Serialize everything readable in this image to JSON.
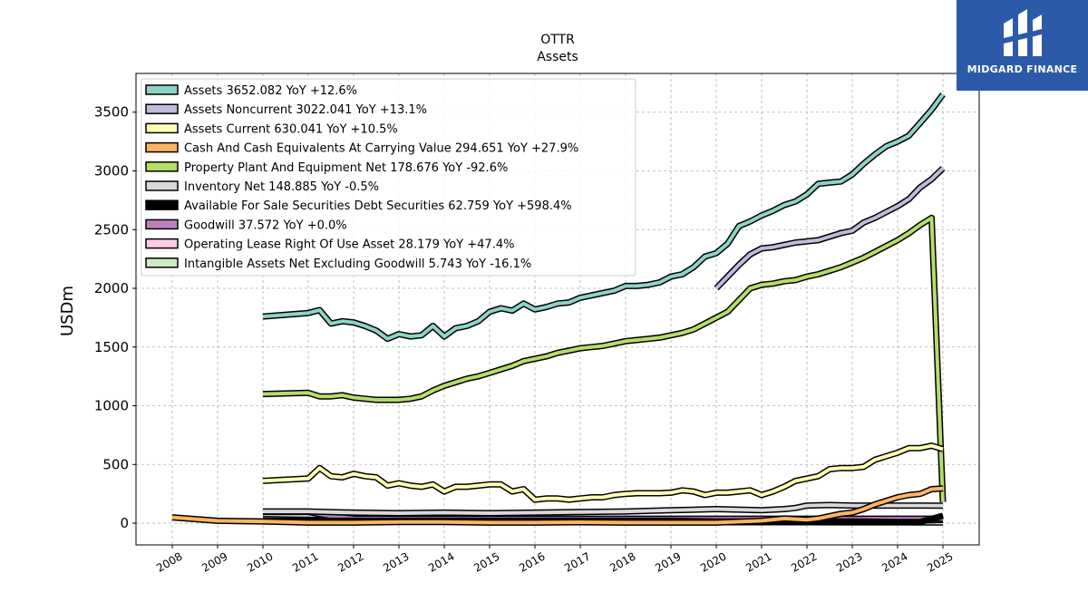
{
  "brand": {
    "name": "MIDGARD FINANCE"
  },
  "chart_data": {
    "type": "line",
    "title": "OTTR",
    "subtitle": "Assets",
    "xlabel": "",
    "ylabel": "USDm",
    "xlim": [
      2007.2,
      2025.8
    ],
    "ylim": [
      -185,
      3830
    ],
    "x_ticks": [
      "2008",
      "2009",
      "2010",
      "2011",
      "2012",
      "2013",
      "2014",
      "2015",
      "2016",
      "2017",
      "2018",
      "2019",
      "2020",
      "2021",
      "2022",
      "2023",
      "2024",
      "2025"
    ],
    "y_ticks": [
      0,
      500,
      1000,
      1500,
      2000,
      2500,
      3000,
      3500
    ],
    "grid": true,
    "legend_position": "upper-left",
    "series": [
      {
        "name": "Assets",
        "legend": "Assets  3652.082 YoY +12.6%",
        "color": "#8dd3c7",
        "x": [
          2010.0,
          2011.0,
          2011.25,
          2011.5,
          2011.75,
          2012.0,
          2012.25,
          2012.5,
          2012.75,
          2013.0,
          2013.25,
          2013.5,
          2013.75,
          2014.0,
          2014.25,
          2014.5,
          2014.75,
          2015.0,
          2015.25,
          2015.5,
          2015.75,
          2016.0,
          2016.25,
          2016.5,
          2016.75,
          2017.0,
          2017.25,
          2017.5,
          2017.75,
          2018.0,
          2018.25,
          2018.5,
          2018.75,
          2019.0,
          2019.25,
          2019.5,
          2019.75,
          2020.0,
          2020.25,
          2020.5,
          2020.75,
          2021.0,
          2021.25,
          2021.5,
          2021.75,
          2022.0,
          2022.25,
          2022.5,
          2022.75,
          2023.0,
          2023.25,
          2023.5,
          2023.75,
          2024.0,
          2024.25,
          2024.5,
          2024.75,
          2025.0
        ],
        "y": [
          1760,
          1790,
          1815,
          1700,
          1720,
          1710,
          1680,
          1640,
          1570,
          1610,
          1590,
          1600,
          1680,
          1590,
          1660,
          1680,
          1720,
          1800,
          1830,
          1810,
          1870,
          1820,
          1840,
          1870,
          1880,
          1920,
          1940,
          1960,
          1980,
          2020,
          2020,
          2030,
          2050,
          2100,
          2120,
          2180,
          2270,
          2300,
          2380,
          2530,
          2570,
          2620,
          2660,
          2710,
          2740,
          2800,
          2890,
          2900,
          2910,
          2970,
          3060,
          3140,
          3210,
          3250,
          3300,
          3410,
          3520,
          3652
        ]
      },
      {
        "name": "Assets Noncurrent",
        "legend": "Assets Noncurrent  3022.041 YoY +13.1%",
        "color": "#bebada",
        "x": [
          2020.0,
          2020.25,
          2020.5,
          2020.75,
          2021.0,
          2021.25,
          2021.5,
          2021.75,
          2022.0,
          2022.25,
          2022.5,
          2022.75,
          2023.0,
          2023.25,
          2023.5,
          2023.75,
          2024.0,
          2024.25,
          2024.5,
          2024.75,
          2025.0
        ],
        "y": [
          2000,
          2100,
          2200,
          2290,
          2340,
          2350,
          2370,
          2390,
          2400,
          2410,
          2440,
          2470,
          2490,
          2560,
          2600,
          2650,
          2700,
          2760,
          2860,
          2930,
          3022
        ]
      },
      {
        "name": "Assets Current",
        "legend": "Assets Current  630.041 YoY +10.5%",
        "color": "#ffffb3",
        "x": [
          2010.0,
          2011.0,
          2011.25,
          2011.5,
          2011.75,
          2012.0,
          2012.25,
          2012.5,
          2012.75,
          2013.0,
          2013.25,
          2013.5,
          2013.75,
          2014.0,
          2014.25,
          2014.5,
          2014.75,
          2015.0,
          2015.25,
          2015.5,
          2015.75,
          2016.0,
          2016.25,
          2016.5,
          2016.75,
          2017.0,
          2017.25,
          2017.5,
          2017.75,
          2018.0,
          2018.25,
          2018.5,
          2018.75,
          2019.0,
          2019.25,
          2019.5,
          2019.75,
          2020.0,
          2020.25,
          2020.5,
          2020.75,
          2021.0,
          2021.25,
          2021.5,
          2021.75,
          2022.0,
          2022.25,
          2022.5,
          2022.75,
          2023.0,
          2023.25,
          2023.5,
          2023.75,
          2024.0,
          2024.25,
          2024.5,
          2024.75,
          2025.0
        ],
        "y": [
          360,
          380,
          470,
          400,
          390,
          420,
          400,
          390,
          320,
          340,
          320,
          310,
          330,
          270,
          310,
          310,
          320,
          330,
          330,
          270,
          290,
          200,
          210,
          210,
          200,
          210,
          220,
          220,
          240,
          250,
          255,
          255,
          255,
          260,
          280,
          270,
          240,
          260,
          260,
          270,
          280,
          240,
          270,
          310,
          360,
          380,
          400,
          460,
          470,
          470,
          480,
          540,
          570,
          600,
          640,
          640,
          660,
          630
        ]
      },
      {
        "name": "Cash And Cash Equivalents At Carrying Value",
        "legend": "Cash And Cash Equivalents At Carrying Value  294.651 YoY +27.9%",
        "color": "#fdb462",
        "x": [
          2008.0,
          2009.0,
          2010.0,
          2011.0,
          2012.0,
          2013.0,
          2014.0,
          2015.0,
          2016.0,
          2017.0,
          2018.0,
          2019.0,
          2020.0,
          2021.0,
          2021.5,
          2022.0,
          2022.25,
          2022.5,
          2022.75,
          2023.0,
          2023.25,
          2023.5,
          2023.75,
          2024.0,
          2024.25,
          2024.5,
          2024.75,
          2025.0
        ],
        "y": [
          50,
          20,
          15,
          5,
          5,
          10,
          10,
          5,
          5,
          8,
          5,
          5,
          5,
          20,
          40,
          30,
          40,
          60,
          80,
          90,
          120,
          160,
          190,
          220,
          240,
          250,
          290,
          295
        ]
      },
      {
        "name": "Property Plant And Equipment Net",
        "legend": "Property Plant And Equipment Net  178.676 YoY -92.6%",
        "color": "#b3de69",
        "x": [
          2010.0,
          2011.0,
          2011.25,
          2011.5,
          2011.75,
          2012.0,
          2012.25,
          2012.5,
          2012.75,
          2013.0,
          2013.25,
          2013.5,
          2013.75,
          2014.0,
          2014.25,
          2014.5,
          2014.75,
          2015.0,
          2015.25,
          2015.5,
          2015.75,
          2016.0,
          2016.25,
          2016.5,
          2016.75,
          2017.0,
          2017.25,
          2017.5,
          2017.75,
          2018.0,
          2018.25,
          2018.5,
          2018.75,
          2019.0,
          2019.25,
          2019.5,
          2019.75,
          2020.0,
          2020.25,
          2020.5,
          2020.75,
          2021.0,
          2021.25,
          2021.5,
          2021.75,
          2022.0,
          2022.25,
          2022.5,
          2022.75,
          2023.0,
          2023.25,
          2023.5,
          2023.75,
          2024.0,
          2024.25,
          2024.5,
          2024.75,
          2025.0
        ],
        "y": [
          1100,
          1110,
          1080,
          1080,
          1090,
          1070,
          1060,
          1050,
          1050,
          1050,
          1060,
          1080,
          1130,
          1170,
          1200,
          1230,
          1250,
          1280,
          1310,
          1340,
          1380,
          1400,
          1420,
          1450,
          1470,
          1490,
          1500,
          1510,
          1530,
          1550,
          1560,
          1570,
          1580,
          1600,
          1620,
          1650,
          1700,
          1750,
          1800,
          1900,
          2000,
          2030,
          2040,
          2060,
          2070,
          2100,
          2120,
          2150,
          2180,
          2220,
          2260,
          2310,
          2360,
          2410,
          2470,
          2540,
          2600,
          180
        ]
      },
      {
        "name": "Inventory Net",
        "legend": "Inventory Net  148.885 YoY -0.5%",
        "color": "#d9d9d9",
        "x": [
          2010.0,
          2011.0,
          2012.0,
          2013.0,
          2014.0,
          2015.0,
          2016.0,
          2017.0,
          2018.0,
          2019.0,
          2020.0,
          2021.0,
          2021.5,
          2021.75,
          2022.0,
          2022.5,
          2023.0,
          2023.5,
          2024.0,
          2024.5,
          2025.0
        ],
        "y": [
          100,
          100,
          90,
          85,
          90,
          85,
          90,
          95,
          100,
          110,
          120,
          110,
          120,
          130,
          150,
          155,
          150,
          150,
          150,
          150,
          149
        ]
      },
      {
        "name": "Available For Sale Securities Debt Securities",
        "legend": "Available For Sale Securities Debt Securities  62.759 YoY +598.4%",
        "color": "#000000",
        "x": [
          2010.0,
          2011.0,
          2012.0,
          2013.0,
          2014.0,
          2015.0,
          2016.0,
          2017.0,
          2018.0,
          2019.0,
          2020.0,
          2021.0,
          2022.0,
          2023.0,
          2024.0,
          2024.5,
          2025.0
        ],
        "y": [
          20,
          20,
          20,
          20,
          20,
          20,
          20,
          20,
          20,
          20,
          15,
          15,
          15,
          15,
          10,
          10,
          63
        ]
      },
      {
        "name": "Goodwill",
        "legend": "Goodwill  37.572 YoY +0.0%",
        "color": "#bc80bd",
        "x": [
          2010.0,
          2011.0,
          2011.5,
          2012.0,
          2013.0,
          2014.0,
          2015.0,
          2016.0,
          2017.0,
          2018.0,
          2019.0,
          2020.0,
          2021.0,
          2022.0,
          2023.0,
          2024.0,
          2025.0
        ],
        "y": [
          95,
          95,
          60,
          40,
          38,
          38,
          38,
          38,
          38,
          38,
          38,
          38,
          38,
          38,
          38,
          38,
          38
        ]
      },
      {
        "name": "Operating Lease Right Of Use Asset",
        "legend": "Operating Lease Right Of Use Asset  28.179 YoY +47.4%",
        "color": "#fccde5",
        "x": [
          2019.0,
          2019.5,
          2020.0,
          2021.0,
          2022.0,
          2023.0,
          2024.0,
          2024.5,
          2025.0
        ],
        "y": [
          20,
          20,
          18,
          18,
          18,
          19,
          19,
          22,
          28
        ]
      },
      {
        "name": "Intangible Assets Net Excluding Goodwill",
        "legend": "Intangible Assets Net Excluding Goodwill  5.743 YoY -16.1%",
        "color": "#ccebc5",
        "x": [
          2010.0,
          2011.0,
          2012.0,
          2013.0,
          2014.0,
          2015.0,
          2016.0,
          2017.0,
          2018.0,
          2019.0,
          2020.0,
          2021.0,
          2022.0,
          2023.0,
          2024.0,
          2025.0
        ],
        "y": [
          35,
          30,
          20,
          15,
          12,
          10,
          8,
          8,
          8,
          8,
          8,
          8,
          8,
          7,
          7,
          6
        ]
      }
    ]
  }
}
